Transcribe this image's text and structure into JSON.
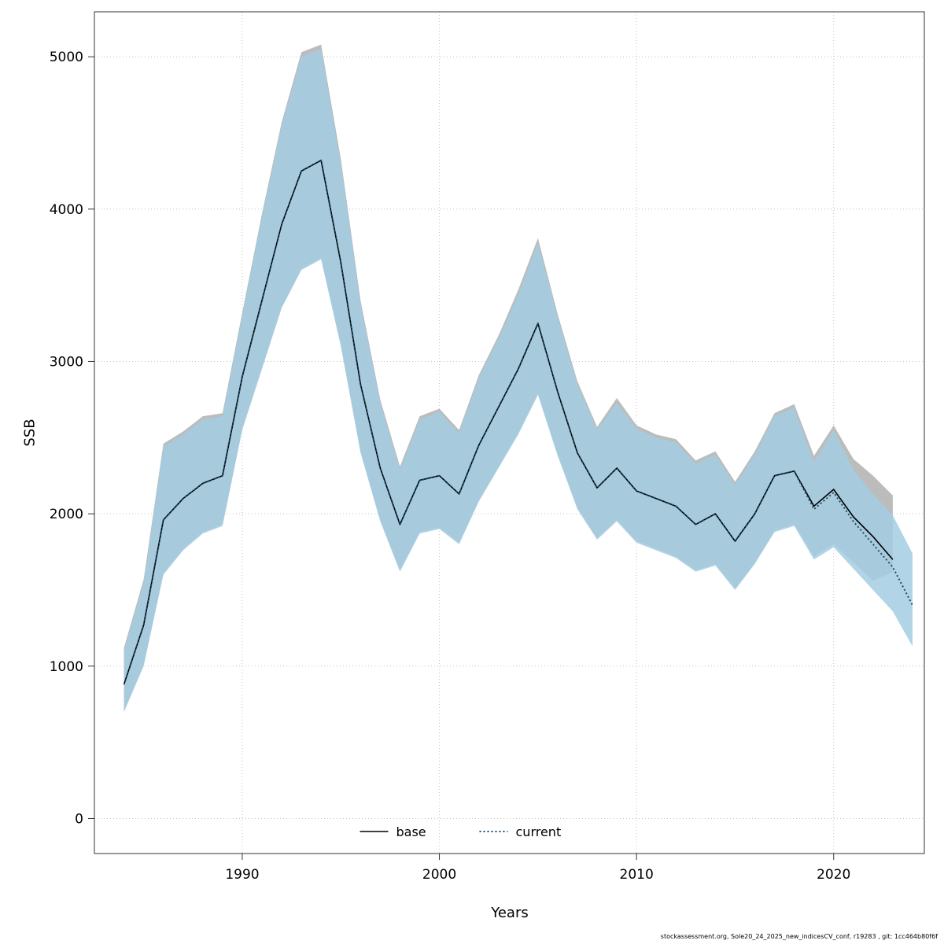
{
  "chart_data": {
    "type": "line",
    "title": "",
    "xlabel": "Years",
    "ylabel": "SSB",
    "xlim": [
      1982.5,
      2024.6
    ],
    "ylim": [
      -230,
      5295
    ],
    "x_ticks": [
      1990,
      2000,
      2010,
      2020
    ],
    "y_ticks": [
      0,
      1000,
      2000,
      3000,
      4000,
      5000
    ],
    "grid": true,
    "legend_position": "bottom-center-inside",
    "series": [
      {
        "name": "base",
        "line_style": "solid",
        "color": "#000000",
        "line_width": 1.6,
        "band_color": "#bcbcbc",
        "band_opacity": 1,
        "x": [
          1984,
          1985,
          1986,
          1987,
          1988,
          1989,
          1990,
          1991,
          1992,
          1993,
          1994,
          1995,
          1996,
          1997,
          1998,
          1999,
          2000,
          2001,
          2002,
          2003,
          2004,
          2005,
          2006,
          2007,
          2008,
          2009,
          2010,
          2011,
          2012,
          2013,
          2014,
          2015,
          2016,
          2017,
          2018,
          2019,
          2020,
          2021,
          2022,
          2023
        ],
        "median": [
          880,
          1270,
          1960,
          2100,
          2200,
          2250,
          2900,
          3400,
          3900,
          4250,
          4320,
          3650,
          2850,
          2300,
          1930,
          2220,
          2250,
          2130,
          2450,
          2700,
          2950,
          3250,
          2800,
          2400,
          2170,
          2300,
          2150,
          2100,
          2050,
          1930,
          2000,
          1820,
          2000,
          2250,
          2280,
          2050,
          2160,
          1980,
          1850,
          1700
        ],
        "lo": [
          700,
          1010,
          1610,
          1770,
          1880,
          1930,
          2560,
          2960,
          3360,
          3610,
          3680,
          3110,
          2410,
          1960,
          1630,
          1880,
          1910,
          1810,
          2090,
          2310,
          2530,
          2790,
          2390,
          2040,
          1840,
          1960,
          1820,
          1770,
          1720,
          1630,
          1670,
          1510,
          1680,
          1890,
          1930,
          1720,
          1800,
          1680,
          1560,
          1620
        ],
        "hi": [
          1120,
          1570,
          2460,
          2540,
          2640,
          2660,
          3320,
          3970,
          4570,
          5030,
          5080,
          4330,
          3400,
          2750,
          2310,
          2640,
          2690,
          2550,
          2910,
          3170,
          3470,
          3810,
          3310,
          2870,
          2570,
          2760,
          2580,
          2520,
          2490,
          2350,
          2410,
          2210,
          2410,
          2660,
          2720,
          2380,
          2580,
          2360,
          2250,
          2120
        ]
      },
      {
        "name": "current",
        "line_style": "dotted",
        "color": "#1f4e68",
        "line_width": 2,
        "band_color": "#a3cde3",
        "band_opacity": 0.85,
        "x": [
          1984,
          1985,
          1986,
          1987,
          1988,
          1989,
          1990,
          1991,
          1992,
          1993,
          1994,
          1995,
          1996,
          1997,
          1998,
          1999,
          2000,
          2001,
          2002,
          2003,
          2004,
          2005,
          2006,
          2007,
          2008,
          2009,
          2010,
          2011,
          2012,
          2013,
          2014,
          2015,
          2016,
          2017,
          2018,
          2019,
          2020,
          2021,
          2022,
          2023,
          2024
        ],
        "median": [
          880,
          1270,
          1960,
          2100,
          2200,
          2250,
          2900,
          3400,
          3900,
          4250,
          4320,
          3650,
          2850,
          2300,
          1930,
          2220,
          2250,
          2130,
          2450,
          2700,
          2950,
          3250,
          2800,
          2400,
          2170,
          2300,
          2150,
          2100,
          2050,
          1930,
          2000,
          1820,
          2000,
          2250,
          2280,
          2030,
          2140,
          1950,
          1800,
          1650,
          1400
        ],
        "lo": [
          700,
          1000,
          1600,
          1760,
          1870,
          1920,
          2550,
          2950,
          3350,
          3600,
          3670,
          3100,
          2400,
          1950,
          1620,
          1870,
          1900,
          1800,
          2080,
          2300,
          2520,
          2780,
          2380,
          2030,
          1830,
          1950,
          1810,
          1760,
          1710,
          1620,
          1660,
          1500,
          1670,
          1880,
          1920,
          1700,
          1780,
          1640,
          1500,
          1360,
          1130
        ],
        "hi": [
          1100,
          1550,
          2440,
          2520,
          2620,
          2640,
          3300,
          3950,
          4550,
          5000,
          5050,
          4300,
          3380,
          2730,
          2290,
          2620,
          2670,
          2530,
          2890,
          3150,
          3440,
          3780,
          3290,
          2850,
          2550,
          2730,
          2560,
          2500,
          2470,
          2330,
          2390,
          2190,
          2390,
          2640,
          2700,
          2340,
          2550,
          2290,
          2130,
          1990,
          1740
        ]
      }
    ]
  },
  "legend": {
    "items": [
      {
        "label": "base"
      },
      {
        "label": "current"
      }
    ]
  },
  "axis": {
    "y_label": "SSB",
    "x_label": "Years"
  },
  "footer": {
    "text": "stockassessment.org, Sole20_24_2025_new_indicesCV_conf, r19283 , git: 1cc464b80f6f"
  }
}
